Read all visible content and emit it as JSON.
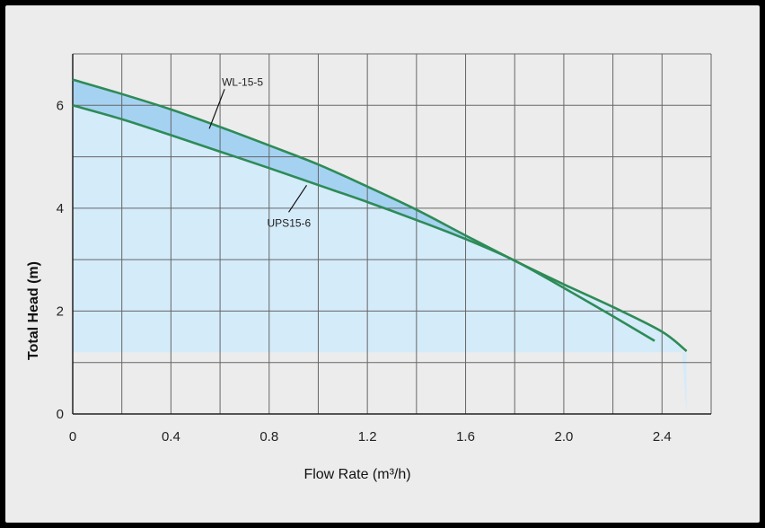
{
  "chart_data": {
    "type": "line",
    "xlabel": "Flow Rate (m³/h)",
    "ylabel": "Total  Head (m)",
    "xlim": [
      0,
      2.6
    ],
    "ylim": [
      0,
      7
    ],
    "x_ticks": [
      0,
      0.4,
      0.8,
      1.2,
      1.6,
      2.0,
      2.4
    ],
    "x_tick_labels": [
      "0",
      "0.4",
      "0.8",
      "1.2",
      "1.6",
      "2.0",
      "2.4"
    ],
    "y_ticks": [
      0,
      2,
      4,
      6
    ],
    "y_tick_labels": [
      "0",
      "2",
      "4",
      "6"
    ],
    "grid": true,
    "shaded_region": {
      "y_min": 1.2
    },
    "series": [
      {
        "name": "WL-15-5",
        "x": [
          0,
          0.2,
          0.4,
          0.6,
          0.8,
          1.0,
          1.2,
          1.4,
          1.6,
          1.8,
          2.0,
          2.2,
          2.4,
          2.5
        ],
        "values": [
          6.5,
          6.22,
          5.92,
          5.58,
          5.22,
          4.85,
          4.42,
          3.97,
          3.47,
          2.98,
          2.52,
          2.08,
          1.6,
          1.22
        ]
      },
      {
        "name": "UPS15-6",
        "x": [
          0,
          0.2,
          0.4,
          0.6,
          0.8,
          1.0,
          1.2,
          1.4,
          1.6,
          1.8,
          2.0,
          2.2,
          2.37
        ],
        "values": [
          6.0,
          5.73,
          5.42,
          5.1,
          4.78,
          4.45,
          4.12,
          3.77,
          3.4,
          2.98,
          2.45,
          1.9,
          1.42
        ]
      }
    ],
    "annotations": [
      "WL-15-5",
      "UPS15-6"
    ],
    "colors": {
      "line": "#2e8b57",
      "fill_light": "#d4ebfa",
      "fill_between": "#a6d2f2",
      "grid": "#666666",
      "background": "#ececec"
    }
  }
}
